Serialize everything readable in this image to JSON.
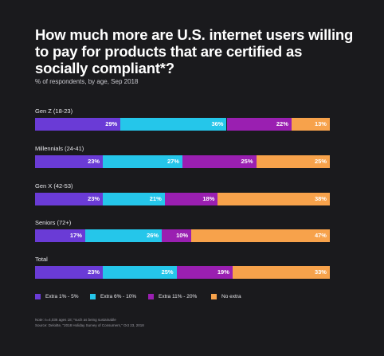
{
  "header": {
    "title": "How much more are U.S. internet users willing to pay for products that are certified as socially compliant*?",
    "subtitle": "% of respondents, by age, Sep 2018"
  },
  "footer": {
    "note": "Note: n=4,036 ages 18; *such as being sustainable",
    "source": "Source: Deloitte, \"2018 Holiday Survey of Consumers,\" Oct 23, 2018"
  },
  "chart_data": {
    "type": "bar",
    "orientation": "horizontal",
    "stacked": true,
    "xlim": [
      0,
      100
    ],
    "categories": [
      "Gen Z (18-23)",
      "Millennials (24-41)",
      "Gen X (42-53)",
      "Seniors (72+)",
      "Total"
    ],
    "series": [
      {
        "name": "Extra 1% - 5%",
        "color": "#6a3bd6",
        "values": [
          29,
          23,
          23,
          17,
          23
        ]
      },
      {
        "name": "Extra 6% - 10%",
        "color": "#25c6ea",
        "values": [
          36,
          27,
          21,
          26,
          25
        ]
      },
      {
        "name": "Extra 11% - 20%",
        "color": "#9a1fb1",
        "values": [
          22,
          25,
          18,
          10,
          19
        ]
      },
      {
        "name": "No extra",
        "color": "#f7a24b",
        "values": [
          13,
          25,
          38,
          47,
          33
        ]
      }
    ],
    "legend_position": "bottom-left",
    "grid": false
  }
}
